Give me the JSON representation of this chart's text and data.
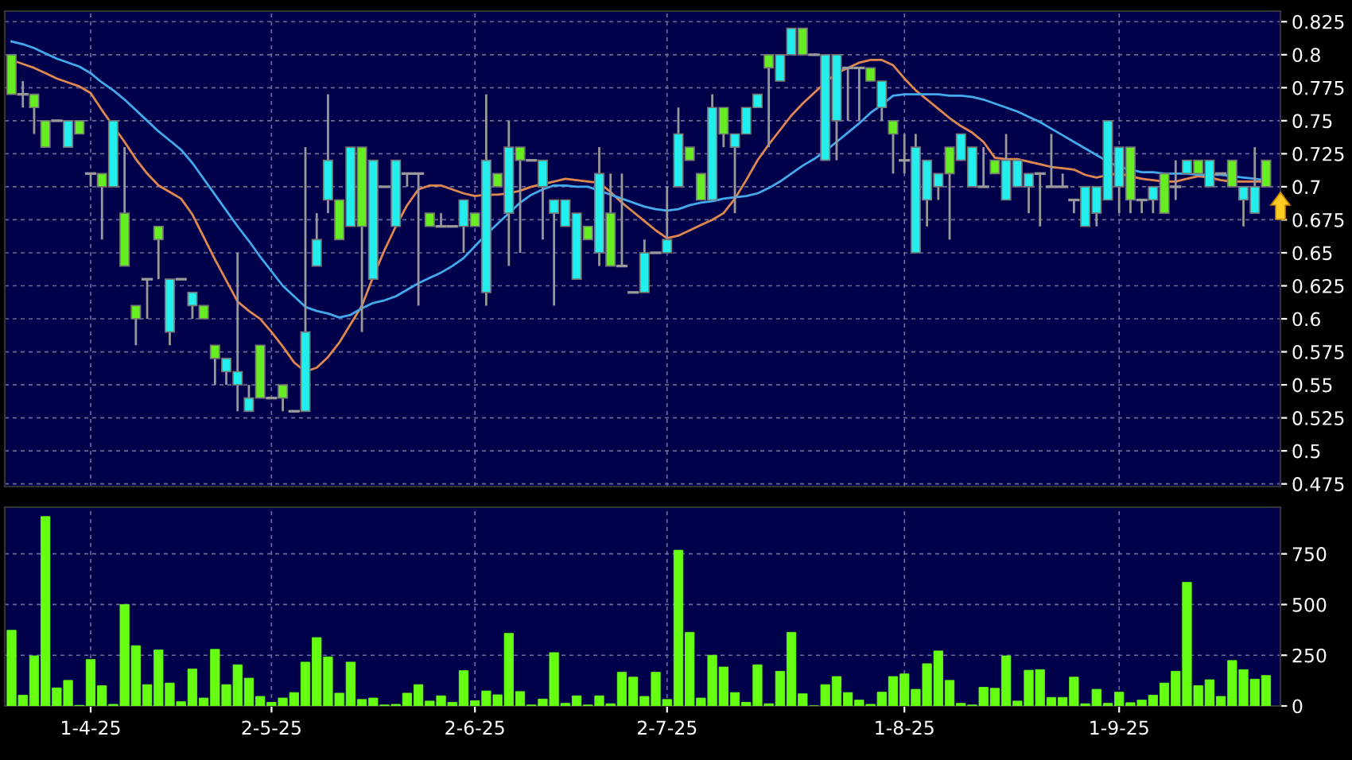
{
  "chart_data": [
    {
      "type": "candlestick",
      "categories": [
        null,
        null,
        null,
        null,
        null,
        null,
        null,
        null,
        null,
        null,
        null,
        null,
        null,
        null,
        null,
        null,
        null,
        null,
        null,
        null,
        null,
        null,
        null,
        null,
        null,
        null,
        null,
        null,
        null,
        null,
        null,
        null,
        null,
        null,
        null,
        null,
        null,
        null,
        null,
        null,
        null,
        null,
        null,
        null,
        null,
        null,
        null,
        null,
        null,
        null,
        null,
        null,
        null,
        null,
        null,
        null,
        null,
        null,
        null,
        null,
        null,
        null,
        null,
        null,
        null,
        null,
        null,
        null,
        null,
        null,
        null,
        null,
        null,
        null,
        null,
        null,
        null,
        null,
        null,
        null,
        null,
        null,
        null,
        null,
        null,
        null,
        null,
        null,
        null,
        null,
        null,
        null,
        null,
        null,
        null,
        null,
        null,
        null,
        null,
        null,
        null,
        null,
        null,
        null,
        null,
        null,
        null,
        null,
        null,
        null,
        null,
        null
      ],
      "ohlc": [
        [
          0.8,
          0.8,
          0.77,
          0.77
        ],
        [
          0.77,
          0.78,
          0.76,
          0.77
        ],
        [
          0.77,
          0.77,
          0.74,
          0.76
        ],
        [
          0.75,
          0.75,
          0.73,
          0.73
        ],
        [
          0.75,
          0.75,
          0.75,
          0.75
        ],
        [
          0.73,
          0.75,
          0.73,
          0.75
        ],
        [
          0.75,
          0.75,
          0.74,
          0.74
        ],
        [
          0.71,
          0.71,
          0.7,
          0.71
        ],
        [
          0.71,
          0.71,
          0.66,
          0.7
        ],
        [
          0.7,
          0.75,
          0.7,
          0.75
        ],
        [
          0.68,
          0.73,
          0.64,
          0.64
        ],
        [
          0.61,
          0.61,
          0.58,
          0.6
        ],
        [
          0.63,
          0.63,
          0.6,
          0.63
        ],
        [
          0.67,
          0.67,
          0.63,
          0.66
        ],
        [
          0.59,
          0.63,
          0.58,
          0.63
        ],
        [
          0.63,
          0.63,
          0.63,
          0.63
        ],
        [
          0.61,
          0.62,
          0.6,
          0.62
        ],
        [
          0.61,
          0.61,
          0.6,
          0.6
        ],
        [
          0.58,
          0.58,
          0.55,
          0.57
        ],
        [
          0.56,
          0.57,
          0.55,
          0.57
        ],
        [
          0.55,
          0.65,
          0.53,
          0.56
        ],
        [
          0.53,
          0.55,
          0.53,
          0.54
        ],
        [
          0.58,
          0.58,
          0.54,
          0.54
        ],
        [
          0.54,
          0.54,
          0.54,
          0.54
        ],
        [
          0.55,
          0.55,
          0.53,
          0.54
        ],
        [
          0.53,
          0.53,
          0.53,
          0.53
        ],
        [
          0.53,
          0.73,
          0.53,
          0.59
        ],
        [
          0.64,
          0.68,
          0.64,
          0.66
        ],
        [
          0.69,
          0.77,
          0.68,
          0.72
        ],
        [
          0.69,
          0.69,
          0.66,
          0.66
        ],
        [
          0.67,
          0.73,
          0.67,
          0.73
        ],
        [
          0.73,
          0.73,
          0.59,
          0.67
        ],
        [
          0.63,
          0.72,
          0.63,
          0.72
        ],
        [
          0.7,
          0.7,
          0.7,
          0.7
        ],
        [
          0.67,
          0.72,
          0.67,
          0.72
        ],
        [
          0.71,
          0.71,
          0.7,
          0.71
        ],
        [
          0.71,
          0.71,
          0.61,
          0.71
        ],
        [
          0.68,
          0.68,
          0.67,
          0.67
        ],
        [
          0.67,
          0.68,
          0.67,
          0.67
        ],
        [
          0.67,
          0.67,
          0.67,
          0.67
        ],
        [
          0.67,
          0.69,
          0.65,
          0.69
        ],
        [
          0.68,
          0.68,
          0.67,
          0.67
        ],
        [
          0.62,
          0.77,
          0.61,
          0.72
        ],
        [
          0.71,
          0.71,
          0.7,
          0.7
        ],
        [
          0.68,
          0.75,
          0.64,
          0.73
        ],
        [
          0.73,
          0.73,
          0.65,
          0.72
        ],
        [
          0.72,
          0.72,
          0.72,
          0.72
        ],
        [
          0.7,
          0.72,
          0.66,
          0.72
        ],
        [
          0.68,
          0.69,
          0.61,
          0.69
        ],
        [
          0.67,
          0.69,
          0.67,
          0.69
        ],
        [
          0.63,
          0.68,
          0.63,
          0.68
        ],
        [
          0.67,
          0.67,
          0.66,
          0.66
        ],
        [
          0.65,
          0.73,
          0.64,
          0.71
        ],
        [
          0.68,
          0.71,
          0.64,
          0.64
        ],
        [
          0.64,
          0.71,
          0.64,
          0.64
        ],
        [
          0.62,
          0.62,
          0.62,
          0.62
        ],
        [
          0.62,
          0.66,
          0.62,
          0.65
        ],
        [
          0.65,
          0.65,
          0.65,
          0.65
        ],
        [
          0.65,
          0.7,
          0.65,
          0.66
        ],
        [
          0.7,
          0.76,
          0.7,
          0.74
        ],
        [
          0.73,
          0.73,
          0.72,
          0.72
        ],
        [
          0.71,
          0.71,
          0.69,
          0.69
        ],
        [
          0.69,
          0.77,
          0.69,
          0.76
        ],
        [
          0.76,
          0.76,
          0.73,
          0.74
        ],
        [
          0.73,
          0.74,
          0.68,
          0.74
        ],
        [
          0.74,
          0.76,
          0.74,
          0.76
        ],
        [
          0.76,
          0.77,
          0.76,
          0.77
        ],
        [
          0.8,
          0.8,
          0.73,
          0.79
        ],
        [
          0.78,
          0.8,
          0.78,
          0.8
        ],
        [
          0.8,
          0.82,
          0.8,
          0.82
        ],
        [
          0.82,
          0.82,
          0.8,
          0.8
        ],
        [
          0.8,
          0.8,
          0.8,
          0.8
        ],
        [
          0.72,
          0.8,
          0.72,
          0.8
        ],
        [
          0.75,
          0.8,
          0.72,
          0.8
        ],
        [
          0.79,
          0.79,
          0.75,
          0.79
        ],
        [
          0.79,
          0.79,
          0.75,
          0.79
        ],
        [
          0.79,
          0.79,
          0.78,
          0.78
        ],
        [
          0.76,
          0.78,
          0.75,
          0.78
        ],
        [
          0.75,
          0.75,
          0.71,
          0.74
        ],
        [
          0.72,
          0.74,
          0.71,
          0.72
        ],
        [
          0.65,
          0.74,
          0.65,
          0.73
        ],
        [
          0.69,
          0.72,
          0.67,
          0.72
        ],
        [
          0.7,
          0.71,
          0.69,
          0.71
        ],
        [
          0.73,
          0.73,
          0.66,
          0.71
        ],
        [
          0.72,
          0.74,
          0.72,
          0.74
        ],
        [
          0.7,
          0.73,
          0.7,
          0.73
        ],
        [
          0.7,
          0.73,
          0.7,
          0.7
        ],
        [
          0.72,
          0.72,
          0.71,
          0.71
        ],
        [
          0.69,
          0.74,
          0.69,
          0.72
        ],
        [
          0.7,
          0.72,
          0.7,
          0.72
        ],
        [
          0.7,
          0.71,
          0.68,
          0.71
        ],
        [
          0.71,
          0.71,
          0.67,
          0.71
        ],
        [
          0.7,
          0.74,
          0.7,
          0.7
        ],
        [
          0.7,
          0.71,
          0.7,
          0.7
        ],
        [
          0.69,
          0.69,
          0.68,
          0.69
        ],
        [
          0.67,
          0.7,
          0.67,
          0.7
        ],
        [
          0.68,
          0.7,
          0.67,
          0.7
        ],
        [
          0.69,
          0.75,
          0.69,
          0.75
        ],
        [
          0.7,
          0.73,
          0.68,
          0.73
        ],
        [
          0.73,
          0.73,
          0.68,
          0.69
        ],
        [
          0.69,
          0.69,
          0.68,
          0.69
        ],
        [
          0.69,
          0.7,
          0.68,
          0.7
        ],
        [
          0.71,
          0.71,
          0.68,
          0.68
        ],
        [
          0.7,
          0.72,
          0.69,
          0.7
        ],
        [
          0.71,
          0.72,
          0.71,
          0.72
        ],
        [
          0.72,
          0.72,
          0.71,
          0.71
        ],
        [
          0.7,
          0.72,
          0.7,
          0.72
        ],
        [
          0.71,
          0.71,
          0.71,
          0.71
        ],
        [
          0.72,
          0.72,
          0.7,
          0.7
        ],
        [
          0.69,
          0.7,
          0.67,
          0.7
        ],
        [
          0.68,
          0.73,
          0.68,
          0.7
        ],
        [
          0.72,
          0.72,
          0.7,
          0.7
        ]
      ],
      "colors": [
        "#66ee22",
        "#999999",
        "#66ee22",
        "#66ee22",
        "#999999",
        "#22eeee",
        "#66ee22",
        "#999999",
        "#66ee22",
        "#22eeee",
        "#66ee22",
        "#66ee22",
        "#999999",
        "#66ee22",
        "#22eeee",
        "#999999",
        "#22eeee",
        "#66ee22",
        "#66ee22",
        "#22eeee",
        "#22eeee",
        "#22eeee",
        "#66ee22",
        "#999999",
        "#66ee22",
        "#999999",
        "#22eeee",
        "#22eeee",
        "#22eeee",
        "#66ee22",
        "#22eeee",
        "#66ee22",
        "#22eeee",
        "#999999",
        "#22eeee",
        "#999999",
        "#999999",
        "#66ee22",
        "#999999",
        "#999999",
        "#22eeee",
        "#66ee22",
        "#22eeee",
        "#66ee22",
        "#22eeee",
        "#66ee22",
        "#999999",
        "#22eeee",
        "#22eeee",
        "#22eeee",
        "#22eeee",
        "#66ee22",
        "#22eeee",
        "#66ee22",
        "#999999",
        "#999999",
        "#22eeee",
        "#999999",
        "#22eeee",
        "#22eeee",
        "#66ee22",
        "#66ee22",
        "#22eeee",
        "#66ee22",
        "#22eeee",
        "#22eeee",
        "#22eeee",
        "#66ee22",
        "#22eeee",
        "#22eeee",
        "#66ee22",
        "#999999",
        "#22eeee",
        "#22eeee",
        "#999999",
        "#999999",
        "#66ee22",
        "#22eeee",
        "#66ee22",
        "#999999",
        "#22eeee",
        "#22eeee",
        "#22eeee",
        "#66ee22",
        "#22eeee",
        "#22eeee",
        "#999999",
        "#66ee22",
        "#22eeee",
        "#22eeee",
        "#22eeee",
        "#999999",
        "#999999",
        "#999999",
        "#999999",
        "#22eeee",
        "#22eeee",
        "#22eeee",
        "#22eeee",
        "#66ee22",
        "#999999",
        "#22eeee",
        "#66ee22",
        "#999999",
        "#22eeee",
        "#66ee22",
        "#22eeee",
        "#999999",
        "#66ee22",
        "#22eeee",
        "#22eeee",
        "#66ee22"
      ],
      "series": [
        {
          "type": "line",
          "color": "#e08850",
          "values": [
            0.796,
            0.793,
            0.79,
            0.786,
            0.782,
            0.779,
            0.776,
            0.771,
            0.758,
            0.746,
            0.734,
            0.721,
            0.71,
            0.701,
            0.696,
            0.691,
            0.679,
            0.662,
            0.645,
            0.629,
            0.613,
            0.606,
            0.6,
            0.59,
            0.579,
            0.567,
            0.56,
            0.563,
            0.571,
            0.582,
            0.596,
            0.61,
            0.632,
            0.652,
            0.67,
            0.686,
            0.698,
            0.701,
            0.701,
            0.698,
            0.695,
            0.693,
            0.694,
            0.694,
            0.695,
            0.697,
            0.7,
            0.702,
            0.704,
            0.706,
            0.705,
            0.704,
            0.703,
            0.696,
            0.688,
            0.681,
            0.674,
            0.667,
            0.661,
            0.663,
            0.667,
            0.671,
            0.675,
            0.68,
            0.691,
            0.705,
            0.72,
            0.732,
            0.743,
            0.754,
            0.763,
            0.771,
            0.779,
            0.786,
            0.79,
            0.794,
            0.796,
            0.796,
            0.792,
            0.782,
            0.773,
            0.766,
            0.759,
            0.752,
            0.746,
            0.741,
            0.734,
            0.722,
            0.721,
            0.721,
            0.719,
            0.717,
            0.715,
            0.714,
            0.713,
            0.709,
            0.707,
            0.709,
            0.71,
            0.708,
            0.706,
            0.705,
            0.704,
            0.704,
            0.706,
            0.708,
            0.707,
            0.705,
            0.704,
            0.704,
            0.704,
            0.704
          ]
        },
        {
          "type": "line",
          "color": "#44aaee",
          "values": [
            0.81,
            0.808,
            0.805,
            0.801,
            0.797,
            0.794,
            0.791,
            0.786,
            0.779,
            0.773,
            0.766,
            0.758,
            0.75,
            0.742,
            0.735,
            0.728,
            0.718,
            0.706,
            0.694,
            0.682,
            0.67,
            0.659,
            0.647,
            0.636,
            0.625,
            0.617,
            0.609,
            0.606,
            0.604,
            0.601,
            0.603,
            0.608,
            0.612,
            0.614,
            0.617,
            0.622,
            0.627,
            0.631,
            0.635,
            0.64,
            0.646,
            0.655,
            0.664,
            0.672,
            0.68,
            0.688,
            0.694,
            0.698,
            0.701,
            0.701,
            0.7,
            0.7,
            0.697,
            0.694,
            0.691,
            0.688,
            0.685,
            0.683,
            0.682,
            0.683,
            0.686,
            0.688,
            0.689,
            0.691,
            0.692,
            0.693,
            0.695,
            0.699,
            0.704,
            0.71,
            0.716,
            0.721,
            0.727,
            0.734,
            0.741,
            0.748,
            0.756,
            0.762,
            0.769,
            0.77,
            0.77,
            0.77,
            0.77,
            0.769,
            0.769,
            0.768,
            0.766,
            0.763,
            0.76,
            0.757,
            0.753,
            0.749,
            0.744,
            0.739,
            0.734,
            0.729,
            0.724,
            0.719,
            0.715,
            0.713,
            0.711,
            0.711,
            0.71,
            0.71,
            0.71,
            0.709,
            0.709,
            0.709,
            0.708,
            0.707,
            0.706,
            0.705
          ]
        }
      ],
      "ylim": [
        0.473,
        0.833
      ],
      "yticks": [
        0.475,
        0.5,
        0.525,
        0.55,
        0.575,
        0.6,
        0.625,
        0.65,
        0.675,
        0.7,
        0.725,
        0.75,
        0.775,
        0.8,
        0.825
      ],
      "grid": true,
      "tick_labels": "y"
    },
    {
      "type": "bar",
      "color": "#66ff11",
      "categories": [
        null,
        null,
        null,
        null,
        null,
        null,
        null,
        "1-4-25",
        null,
        null,
        null,
        null,
        null,
        null,
        null,
        null,
        null,
        null,
        null,
        null,
        null,
        null,
        null,
        "2-5-25",
        null,
        null,
        null,
        null,
        null,
        null,
        null,
        null,
        null,
        null,
        null,
        null,
        null,
        null,
        null,
        null,
        null,
        "2-6-25",
        null,
        null,
        null,
        null,
        null,
        null,
        null,
        null,
        null,
        null,
        null,
        null,
        null,
        null,
        null,
        null,
        "2-7-25",
        null,
        null,
        null,
        null,
        null,
        null,
        null,
        null,
        null,
        null,
        null,
        null,
        null,
        null,
        null,
        null,
        null,
        null,
        null,
        null,
        "1-8-25",
        null,
        null,
        null,
        null,
        null,
        null,
        null,
        null,
        null,
        null,
        null,
        null,
        null,
        null,
        null,
        null,
        null,
        null,
        "1-9-25",
        null,
        null,
        null,
        null,
        null,
        null,
        null,
        null,
        null,
        null,
        null,
        null,
        null
      ],
      "values": [
        373,
        53,
        247,
        934,
        89,
        126,
        3,
        229,
        100,
        8,
        500,
        297,
        105,
        276,
        113,
        21,
        182,
        39,
        279,
        105,
        203,
        137,
        47,
        18,
        39,
        66,
        216,
        337,
        242,
        63,
        216,
        32,
        39,
        5,
        8,
        63,
        105,
        24,
        50,
        18,
        174,
        26,
        74,
        55,
        358,
        71,
        5,
        34,
        263,
        13,
        50,
        5,
        50,
        11,
        166,
        142,
        47,
        166,
        32,
        768,
        363,
        39,
        250,
        192,
        66,
        18,
        203,
        11,
        171,
        363,
        60,
        0,
        105,
        145,
        66,
        29,
        8,
        68,
        145,
        158,
        82,
        208,
        271,
        126,
        13,
        5,
        92,
        87,
        247,
        24,
        176,
        179,
        42,
        42,
        142,
        11,
        82,
        13,
        68,
        16,
        29,
        53,
        113,
        171,
        610,
        100,
        129,
        47,
        224,
        179,
        132,
        150
      ],
      "ylim": [
        0,
        980
      ],
      "yticks": [
        0,
        250,
        500,
        750
      ],
      "grid": true
    }
  ]
}
